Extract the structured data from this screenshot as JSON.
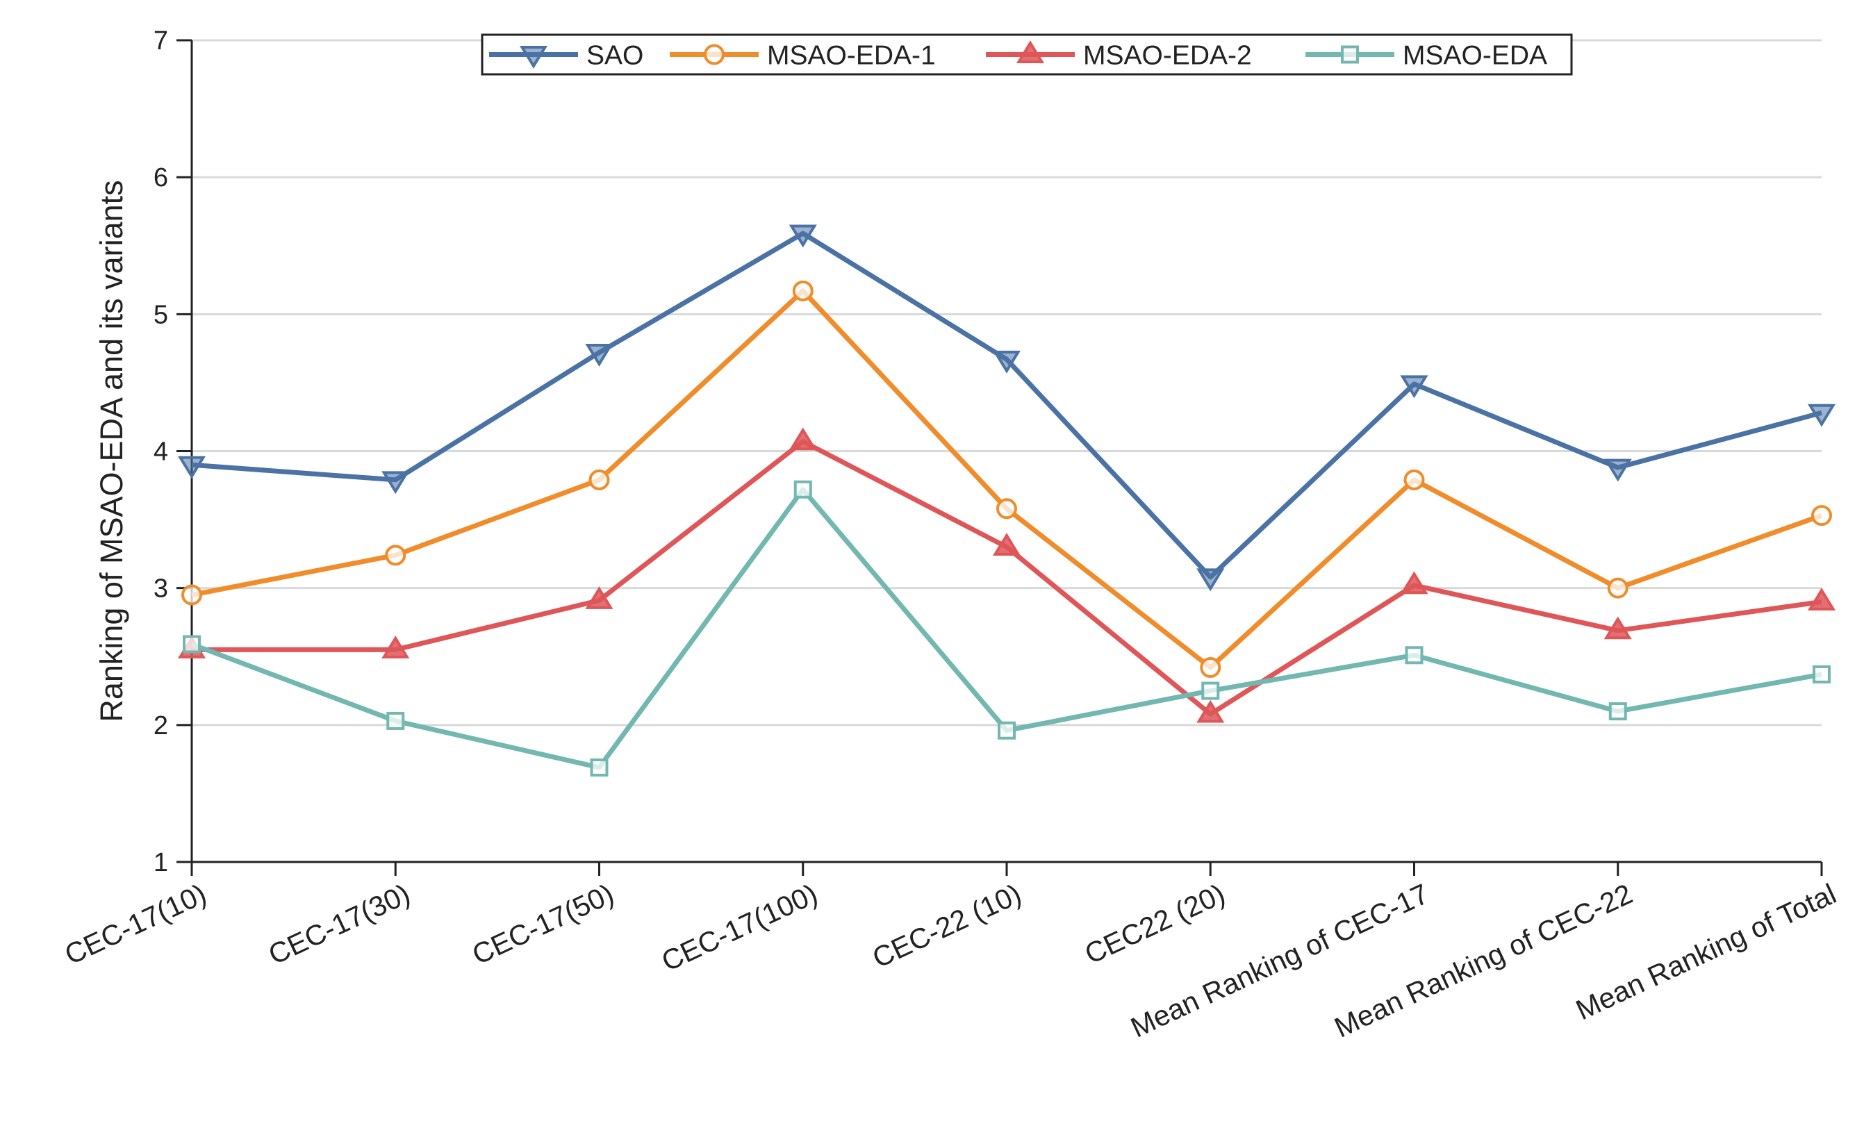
{
  "chart_data": {
    "type": "line",
    "title": "",
    "xlabel": "",
    "ylabel": "Ranking of MSAO-EDA and its variants",
    "ylim": [
      1,
      7
    ],
    "yticks": [
      1,
      2,
      3,
      4,
      5,
      6,
      7
    ],
    "grid": "horizontal",
    "legend_position": "top",
    "categories": [
      "CEC-17(10)",
      "CEC-17(30)",
      "CEC-17(50)",
      "CEC-17(100)",
      "CEC-22 (10)",
      "CEC22 (20)",
      "Mean Ranking of CEC-17",
      "Mean Ranking of CEC-22",
      "Mean Ranking of Total"
    ],
    "series": [
      {
        "name": "SAO",
        "color": "#4a72a5",
        "marker": "triangle-down",
        "values": [
          3.9,
          3.79,
          4.72,
          5.59,
          4.67,
          3.08,
          4.49,
          3.88,
          4.28
        ]
      },
      {
        "name": "MSAO-EDA-1",
        "color": "#f08c2a",
        "marker": "circle",
        "values": [
          2.95,
          3.24,
          3.79,
          5.17,
          3.58,
          2.42,
          3.79,
          3.0,
          3.53
        ]
      },
      {
        "name": "MSAO-EDA-2",
        "color": "#df5659",
        "marker": "triangle-up",
        "values": [
          2.55,
          2.55,
          2.91,
          4.07,
          3.3,
          2.08,
          3.02,
          2.69,
          2.9
        ]
      },
      {
        "name": "MSAO-EDA",
        "color": "#72b7b0",
        "marker": "square",
        "values": [
          2.59,
          2.03,
          1.69,
          3.72,
          1.96,
          2.25,
          2.51,
          2.1,
          2.37
        ]
      }
    ]
  }
}
